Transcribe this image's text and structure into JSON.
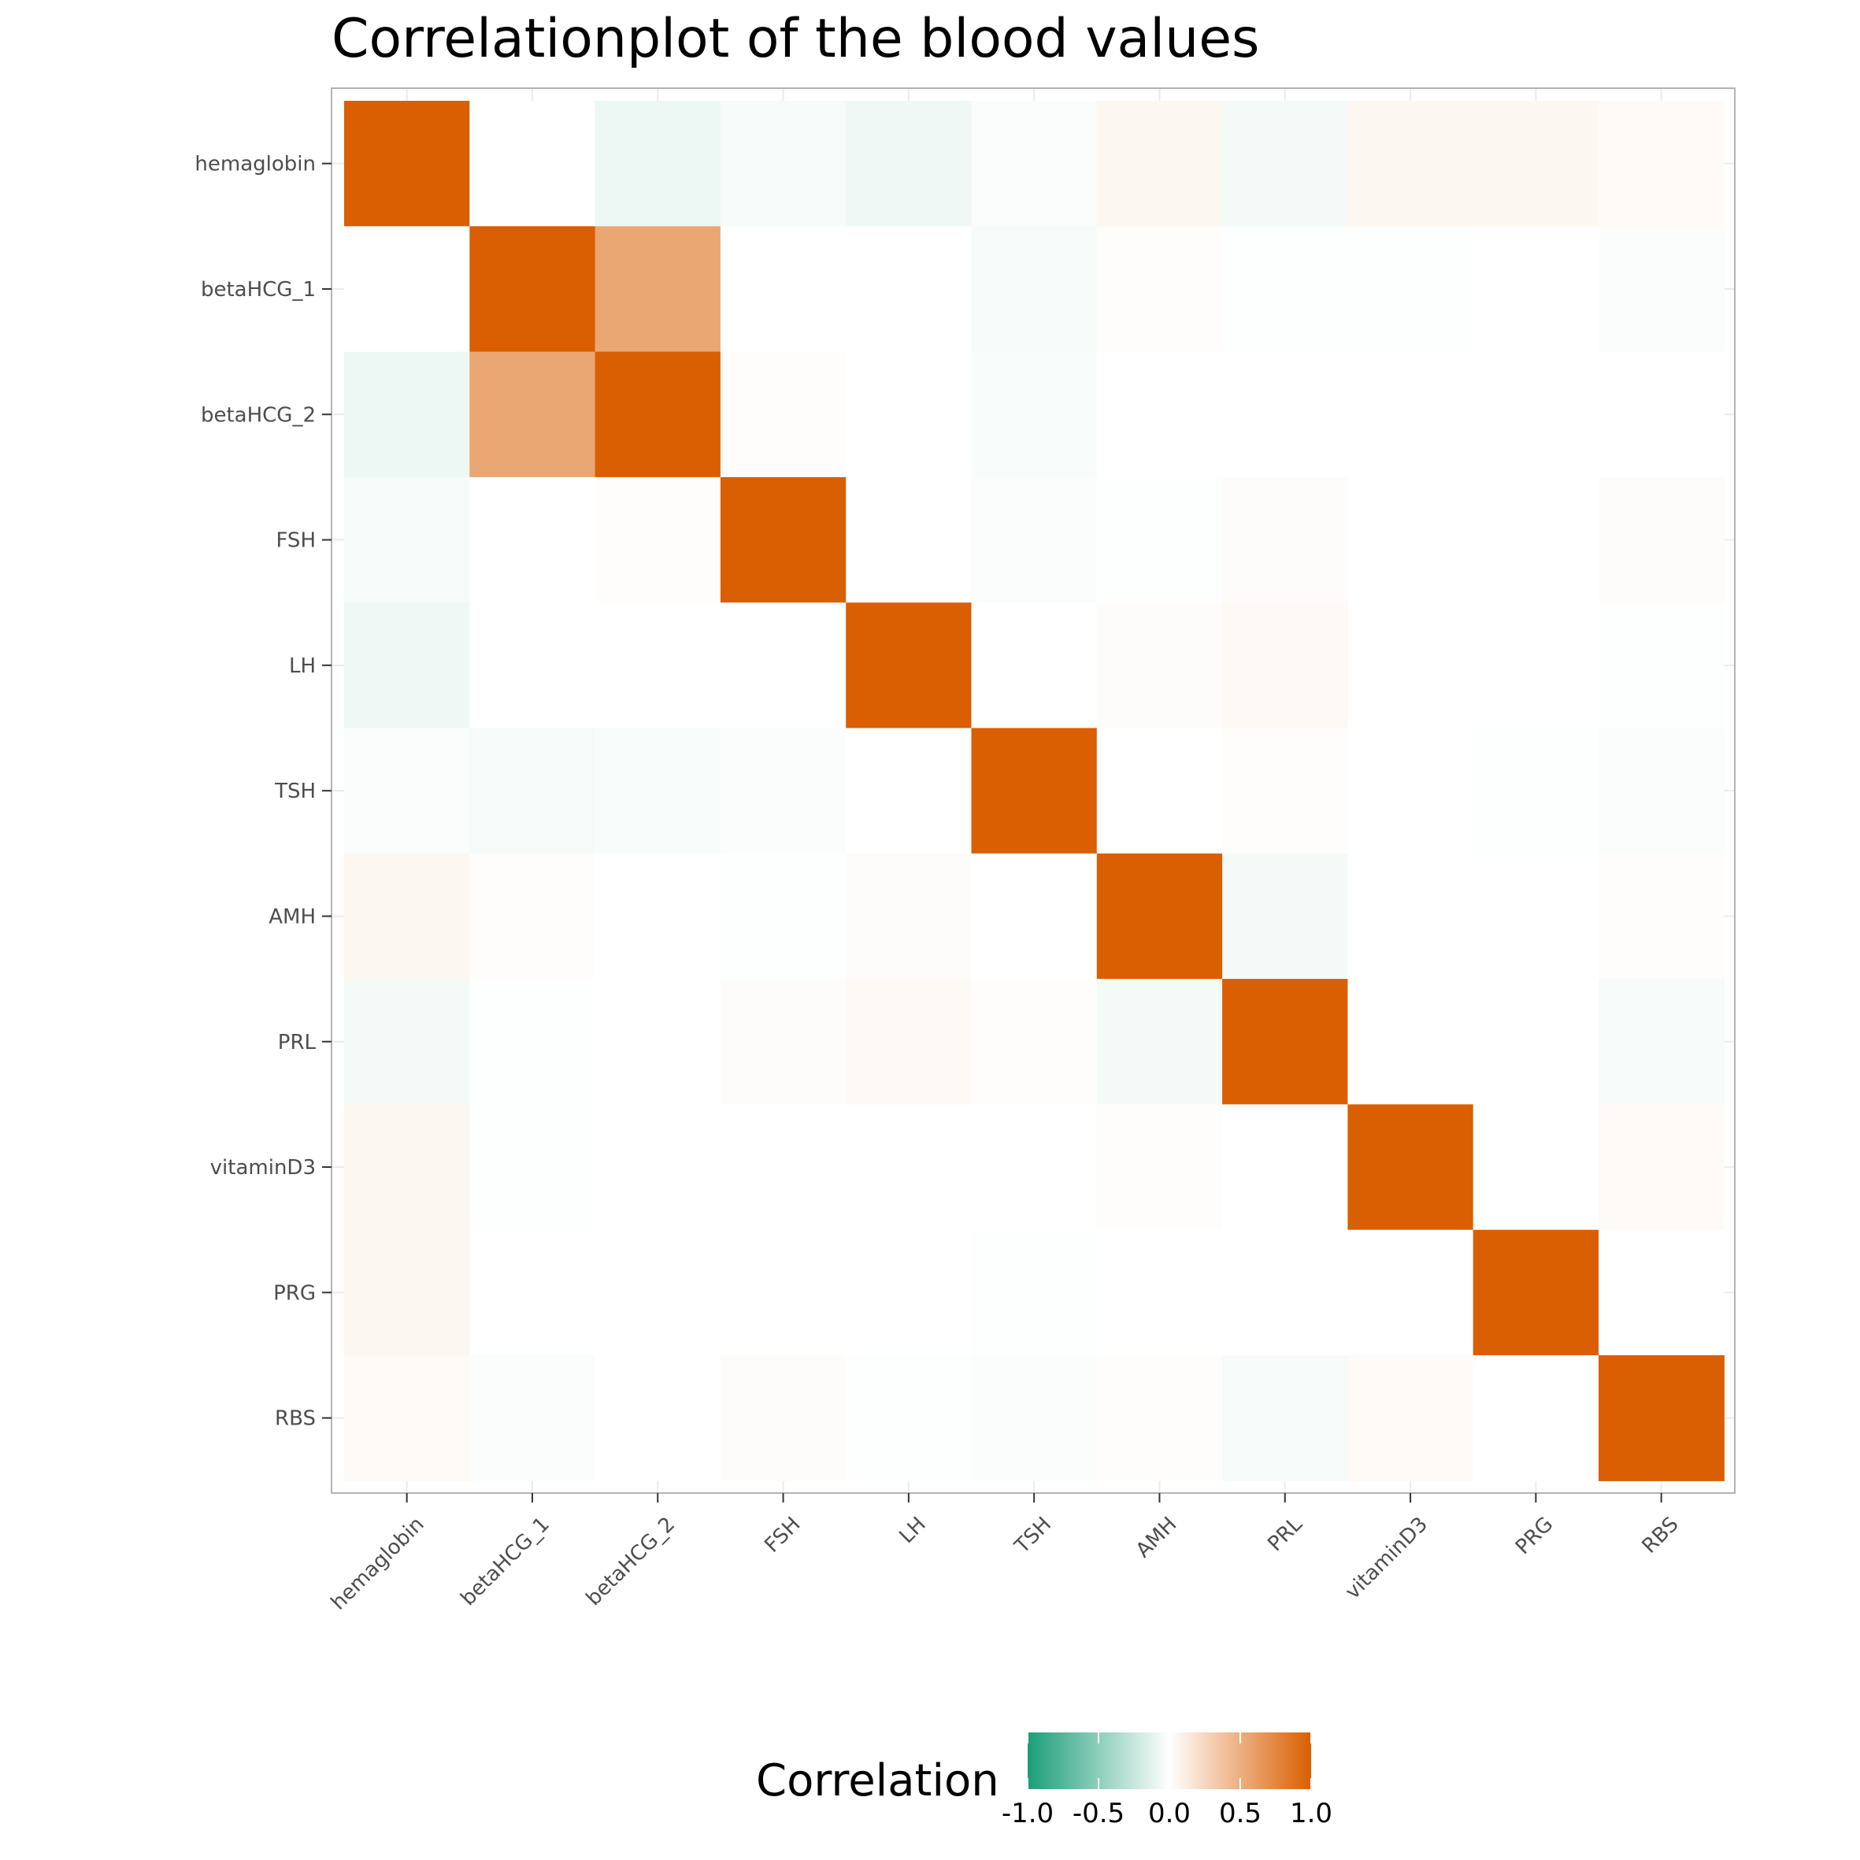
{
  "chart_data": {
    "type": "heatmap",
    "title": "Correlationplot of the blood values",
    "xlabel": "",
    "ylabel": "",
    "variables": [
      "hemaglobin",
      "betaHCG_1",
      "betaHCG_2",
      "FSH",
      "LH",
      "TSH",
      "AMH",
      "PRL",
      "vitaminD3",
      "PRG",
      "RBS"
    ],
    "matrix": [
      [
        1.0,
        0.0,
        -0.08,
        -0.04,
        -0.07,
        -0.02,
        0.05,
        -0.05,
        0.05,
        0.05,
        0.03
      ],
      [
        0.0,
        1.0,
        0.55,
        0.0,
        0.0,
        -0.04,
        0.01,
        -0.01,
        -0.01,
        0.0,
        -0.02
      ],
      [
        -0.08,
        0.55,
        1.0,
        0.01,
        0.0,
        -0.03,
        0.0,
        0.0,
        0.0,
        0.0,
        0.0
      ],
      [
        -0.04,
        0.0,
        0.01,
        1.0,
        0.0,
        -0.02,
        -0.01,
        0.02,
        0.0,
        0.0,
        0.02
      ],
      [
        -0.07,
        0.0,
        0.0,
        0.0,
        1.0,
        0.0,
        0.02,
        0.04,
        0.0,
        0.0,
        -0.01
      ],
      [
        -0.02,
        -0.04,
        -0.03,
        -0.02,
        0.0,
        1.0,
        0.0,
        0.01,
        0.0,
        -0.01,
        -0.02
      ],
      [
        0.05,
        0.01,
        0.0,
        -0.01,
        0.02,
        0.0,
        1.0,
        -0.05,
        0.0,
        0.0,
        0.01
      ],
      [
        -0.05,
        -0.01,
        0.0,
        0.02,
        0.04,
        0.01,
        -0.05,
        1.0,
        0.0,
        0.0,
        -0.04
      ],
      [
        0.05,
        -0.01,
        0.0,
        0.0,
        0.0,
        0.0,
        0.01,
        0.0,
        1.0,
        0.0,
        0.03
      ],
      [
        0.05,
        0.0,
        0.0,
        0.0,
        0.0,
        -0.01,
        0.0,
        0.0,
        0.0,
        1.0,
        0.0
      ],
      [
        0.03,
        -0.02,
        0.0,
        0.02,
        -0.01,
        -0.02,
        0.01,
        -0.04,
        0.03,
        0.0,
        1.0
      ]
    ],
    "colorscale": {
      "low": "#1B9E77",
      "mid": "#FFFFFF",
      "high": "#D95F02",
      "limits": [
        -1.0,
        1.0
      ]
    },
    "legend": {
      "title": "Correlation",
      "ticks": [
        "-1.0",
        "-0.5",
        "0.0",
        "0.5",
        "1.0"
      ],
      "tick_values": [
        -1.0,
        -0.5,
        0.0,
        0.5,
        1.0
      ],
      "placement": "bottom"
    },
    "grid": true,
    "panel_border_color": "#b3b3b3",
    "gridline_color": "#ebebeb"
  }
}
